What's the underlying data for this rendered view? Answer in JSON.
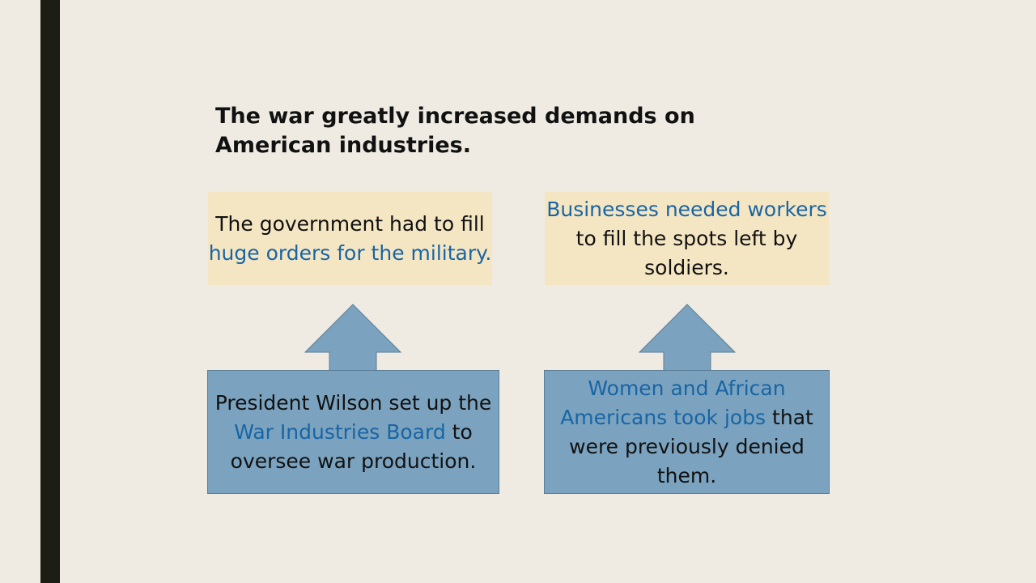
{
  "title": "The war greatly increased demands on American industries.",
  "colors": {
    "background": "#efebe3",
    "left_bar": "#1c1d15",
    "tan_box": "#f5e6c3",
    "blue_box": "#7ba3bf",
    "highlight_text": "#1865a5",
    "arrow_fill": "#7ba3bf"
  },
  "top_boxes": [
    {
      "segments": [
        {
          "text": "The government had to fill ",
          "highlight": false
        },
        {
          "text": "huge orders for the military.",
          "highlight": true
        }
      ]
    },
    {
      "segments": [
        {
          "text": "Businesses needed workers",
          "highlight": true
        },
        {
          "text": " to fill the spots left by soldiers.",
          "highlight": false
        }
      ]
    }
  ],
  "bottom_boxes": [
    {
      "segments": [
        {
          "text": "President Wilson set up the ",
          "highlight": false
        },
        {
          "text": "War Industries Board",
          "highlight": true
        },
        {
          "text": " to oversee war production.",
          "highlight": false
        }
      ]
    },
    {
      "segments": [
        {
          "text": "Women and African Americans took jobs",
          "highlight": true
        },
        {
          "text": " that were previously denied them.",
          "highlight": false
        }
      ]
    }
  ],
  "arrows": [
    {
      "icon": "up-arrow-icon"
    },
    {
      "icon": "up-arrow-icon"
    }
  ]
}
